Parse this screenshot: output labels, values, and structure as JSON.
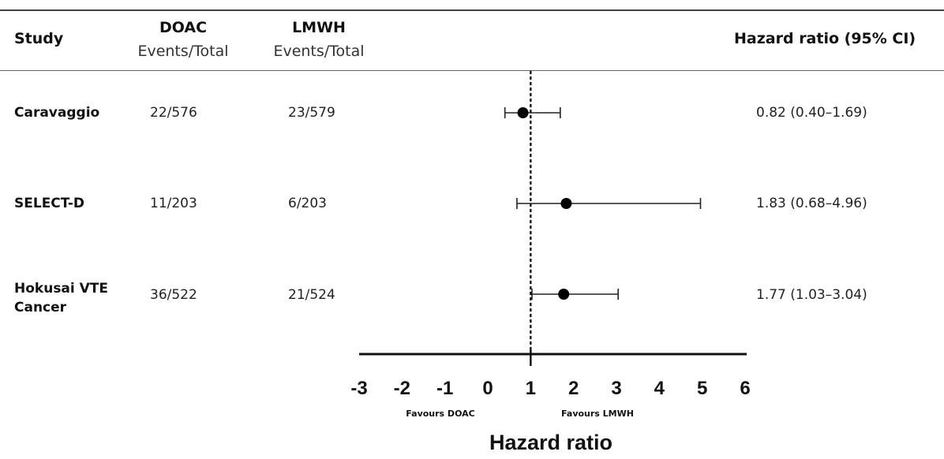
{
  "chart_data": {
    "type": "forest",
    "columns": {
      "study": "Study",
      "doac_title": "DOAC",
      "doac_sub": "Events/Total",
      "lmwh_title": "LMWH",
      "lmwh_sub": "Events/Total",
      "hr": "Hazard ratio (95% CI)"
    },
    "rows": [
      {
        "study": [
          "Caravaggio"
        ],
        "doac": "22/576",
        "lmwh": "23/579",
        "hr_text": "0.82 (0.40–1.69)",
        "estimate": 0.82,
        "ci_low": 0.4,
        "ci_high": 1.69
      },
      {
        "study": [
          "SELECT-D"
        ],
        "doac": "11/203",
        "lmwh": "6/203",
        "hr_text": "1.83 (0.68–4.96)",
        "estimate": 1.83,
        "ci_low": 0.68,
        "ci_high": 4.96
      },
      {
        "study": [
          "Hokusai VTE",
          "Cancer"
        ],
        "doac": "36/522",
        "lmwh": "21/524",
        "hr_text": "1.77 (1.03–3.04)",
        "estimate": 1.77,
        "ci_low": 1.03,
        "ci_high": 3.04
      }
    ],
    "xlim": [
      -3,
      6
    ],
    "xticks": [
      "-3",
      "-2",
      "-1",
      "0",
      "1",
      "2",
      "3",
      "4",
      "5",
      "6"
    ],
    "reference_line": 1,
    "favours_left": "Favours DOAC",
    "favours_right": "Favours LMWH",
    "xlabel": "Hazard ratio"
  }
}
